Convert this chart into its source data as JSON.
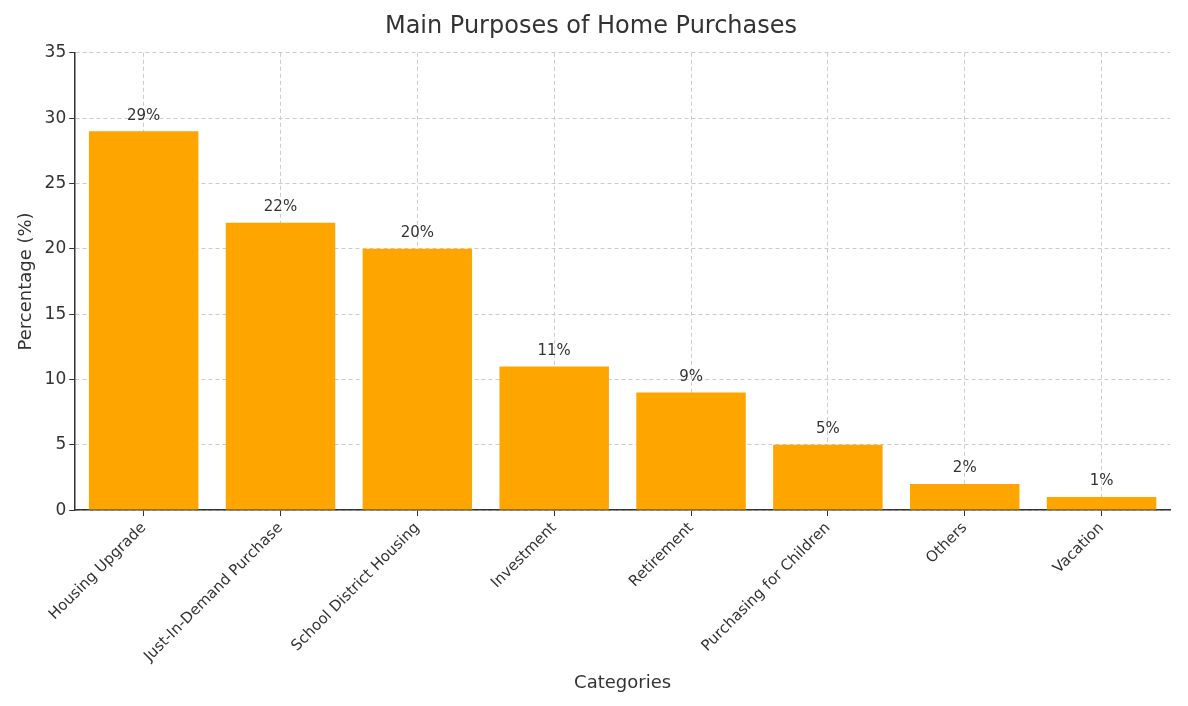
{
  "chart_data": {
    "type": "bar",
    "title": "Main Purposes of Home Purchases",
    "xlabel": "Categories",
    "ylabel": "Percentage (%)",
    "categories": [
      "Housing Upgrade",
      "Just-In-Demand Purchase",
      "School District Housing",
      "Investment",
      "Retirement",
      "Purchasing for Children",
      "Others",
      "Vacation"
    ],
    "values": [
      29,
      22,
      20,
      11,
      9,
      5,
      2,
      1
    ],
    "value_labels": [
      "29%",
      "22%",
      "20%",
      "11%",
      "9%",
      "5%",
      "2%",
      "1%"
    ],
    "color": "#ffa500",
    "ylim": [
      0,
      35
    ],
    "yticks": [
      0,
      5,
      10,
      15,
      20,
      25,
      30,
      35
    ],
    "grid": true,
    "legend": false
  }
}
